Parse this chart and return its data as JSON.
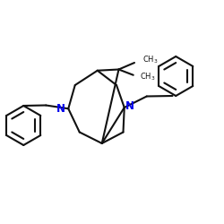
{
  "bg_color": "#ffffff",
  "bond_color": "#111111",
  "N_color": "#0000ee",
  "linewidth": 1.5,
  "figsize": [
    2.5,
    2.5
  ],
  "dpi": 100,
  "xlim": [
    0,
    10
  ],
  "ylim": [
    0,
    10
  ]
}
